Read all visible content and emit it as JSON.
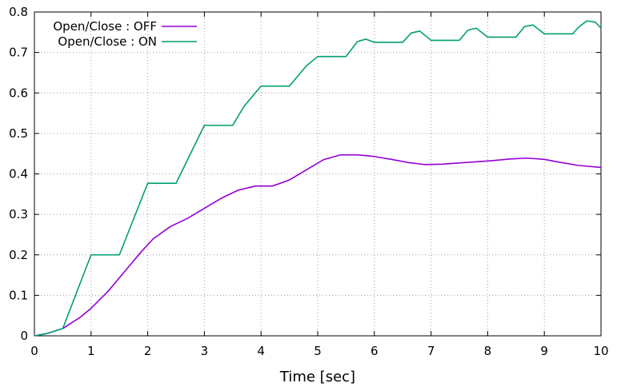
{
  "chart_data": {
    "type": "line",
    "title": "",
    "xlabel": "Time [sec]",
    "ylabel": "",
    "xlim": [
      0,
      10
    ],
    "ylim": [
      0,
      0.8
    ],
    "xticks": [
      0,
      1,
      2,
      3,
      4,
      5,
      6,
      7,
      8,
      9,
      10
    ],
    "yticks": [
      0,
      0.1,
      0.2,
      0.3,
      0.4,
      0.5,
      0.6,
      0.7,
      0.8
    ],
    "xtick_labels": [
      "0",
      "1",
      "2",
      "3",
      "4",
      "5",
      "6",
      "7",
      "8",
      "9",
      "10"
    ],
    "ytick_labels": [
      "0",
      "0.1",
      "0.2",
      "0.3",
      "0.4",
      "0.5",
      "0.6",
      "0.7",
      "0.8"
    ],
    "grid": true,
    "legend_position": "top-left",
    "series": [
      {
        "name": "Open/Close : OFF",
        "color": "#9400d3",
        "x": [
          0,
          0.2,
          0.5,
          0.8,
          1.0,
          1.3,
          1.6,
          1.9,
          2.1,
          2.4,
          2.7,
          3.0,
          3.3,
          3.6,
          3.9,
          4.2,
          4.5,
          4.8,
          5.1,
          5.4,
          5.7,
          6.0,
          6.3,
          6.6,
          6.9,
          7.2,
          7.5,
          7.8,
          8.1,
          8.4,
          8.7,
          9.0,
          9.3,
          9.6,
          10.0
        ],
        "y": [
          0,
          0.005,
          0.018,
          0.045,
          0.068,
          0.11,
          0.16,
          0.21,
          0.24,
          0.27,
          0.29,
          0.315,
          0.34,
          0.36,
          0.37,
          0.37,
          0.385,
          0.41,
          0.435,
          0.447,
          0.447,
          0.443,
          0.436,
          0.428,
          0.423,
          0.424,
          0.427,
          0.43,
          0.433,
          0.437,
          0.439,
          0.436,
          0.428,
          0.421,
          0.416
        ]
      },
      {
        "name": "Open/Close : ON",
        "color": "#009e73",
        "x": [
          0,
          0.2,
          0.5,
          1.0,
          1.5,
          2.0,
          2.5,
          3.0,
          3.5,
          3.7,
          4.0,
          4.5,
          4.8,
          5.0,
          5.5,
          5.7,
          5.85,
          6.0,
          6.5,
          6.65,
          6.8,
          7.0,
          7.5,
          7.65,
          7.8,
          8.0,
          8.5,
          8.65,
          8.8,
          9.0,
          9.5,
          9.6,
          9.75,
          9.9,
          10.0
        ],
        "y": [
          0,
          0.005,
          0.018,
          0.2,
          0.2,
          0.377,
          0.377,
          0.52,
          0.52,
          0.567,
          0.617,
          0.617,
          0.667,
          0.69,
          0.69,
          0.727,
          0.733,
          0.725,
          0.725,
          0.748,
          0.753,
          0.73,
          0.73,
          0.755,
          0.76,
          0.738,
          0.738,
          0.764,
          0.768,
          0.746,
          0.746,
          0.762,
          0.778,
          0.775,
          0.76
        ]
      }
    ]
  }
}
